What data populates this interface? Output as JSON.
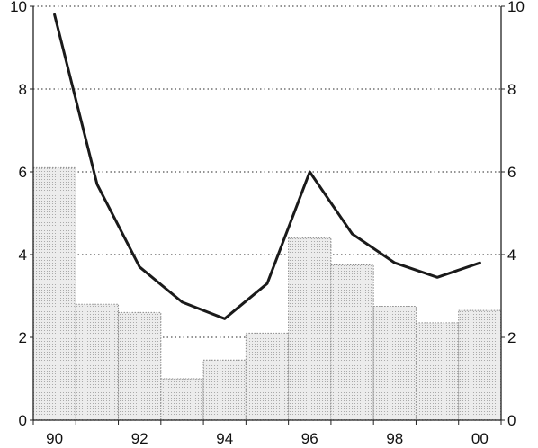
{
  "chart_data": {
    "type": "bar",
    "categories": [
      "90",
      "91",
      "92",
      "93",
      "94",
      "95",
      "96",
      "97",
      "98",
      "99",
      "00"
    ],
    "x_tick_labels": [
      "90",
      "92",
      "94",
      "96",
      "98",
      "00"
    ],
    "y_tick_labels": [
      "0",
      "2",
      "4",
      "6",
      "8",
      "10"
    ],
    "ylim": [
      0,
      10
    ],
    "grid": true,
    "series": [
      {
        "type": "bar",
        "values": [
          6.1,
          2.8,
          2.6,
          1.0,
          1.45,
          2.1,
          4.4,
          3.75,
          2.75,
          2.35,
          2.65
        ]
      },
      {
        "type": "line",
        "values": [
          9.8,
          5.7,
          3.7,
          2.85,
          2.45,
          3.3,
          6.0,
          4.5,
          3.8,
          3.45,
          3.8
        ]
      }
    ],
    "colors": {
      "bar_fill": "#e6e6e6",
      "bar_stroke": "#8a8a8a",
      "line": "#1a1a1a",
      "grid": "#555555"
    }
  }
}
